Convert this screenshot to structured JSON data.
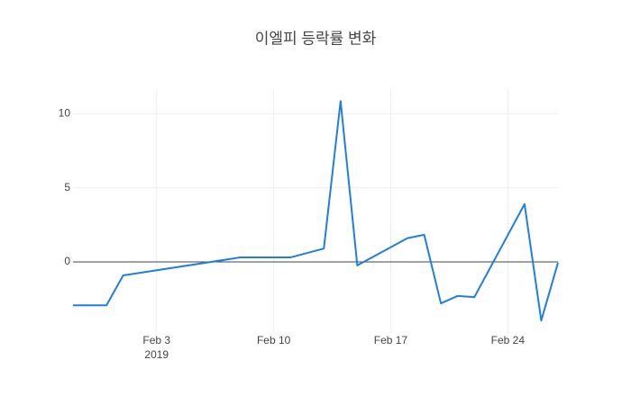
{
  "chart_data": {
    "type": "line",
    "title": "이엘피 등락률 변화",
    "x": [
      "2019-01-29",
      "2019-01-31",
      "2019-02-01",
      "2019-02-08",
      "2019-02-11",
      "2019-02-13",
      "2019-02-14",
      "2019-02-15",
      "2019-02-18",
      "2019-02-19",
      "2019-02-20",
      "2019-02-21",
      "2019-02-22",
      "2019-02-25",
      "2019-02-26",
      "2019-02-27"
    ],
    "series": [
      {
        "color": "#1f7fe0",
        "values": [
          -2.93,
          -2.93,
          -0.91,
          0.3,
          0.3,
          0.9,
          10.85,
          -0.24,
          1.6,
          1.83,
          -2.8,
          -2.3,
          -2.38,
          3.9,
          -3.96,
          -0.06
        ]
      }
    ],
    "xlim": [
      "2019-01-29",
      "2019-02-27"
    ],
    "xticks": [
      {
        "value": "2019-02-03",
        "label": "Feb 3",
        "sublabel": "2019"
      },
      {
        "value": "2019-02-10",
        "label": "Feb 10"
      },
      {
        "value": "2019-02-17",
        "label": "Feb 17"
      },
      {
        "value": "2019-02-24",
        "label": "Feb 24"
      }
    ],
    "ylim": [
      -4.8,
      11.6
    ],
    "yticks": [
      0,
      5,
      10
    ],
    "grid": true
  }
}
